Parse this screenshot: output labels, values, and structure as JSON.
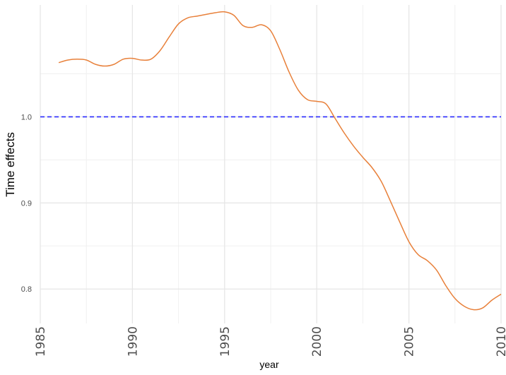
{
  "chart_data": {
    "type": "line",
    "title": "",
    "xlabel": "year",
    "ylabel": "Time effects",
    "xlim": [
      1985,
      2010
    ],
    "ylim": [
      0.76,
      1.13
    ],
    "x_ticks": [
      1985,
      1990,
      1995,
      2000,
      2005,
      2010
    ],
    "x_tick_labels": [
      "1985",
      "1990",
      "1995",
      "2000",
      "2005",
      "2010"
    ],
    "y_ticks": [
      0.8,
      0.9,
      1.0
    ],
    "y_tick_labels": [
      "0.8",
      "0.9",
      "1.0"
    ],
    "grid": true,
    "legend": "none",
    "reference_line": {
      "y": 1.0,
      "style": "dashed",
      "color": "#2b2bff"
    },
    "series": [
      {
        "color": "#e8803a",
        "x": [
          1986,
          1986.5,
          1987,
          1987.5,
          1988,
          1988.5,
          1989,
          1989.5,
          1990,
          1990.5,
          1991,
          1991.5,
          1992,
          1992.5,
          1993,
          1993.5,
          1994,
          1994.5,
          1995,
          1995.5,
          1996,
          1996.5,
          1997,
          1997.5,
          1998,
          1998.5,
          1999,
          1999.5,
          2000,
          2000.5,
          2001,
          2001.5,
          2002,
          2002.5,
          2003,
          2003.5,
          2004,
          2004.5,
          2005,
          2005.5,
          2006,
          2006.5,
          2007,
          2007.5,
          2008,
          2008.5,
          2009,
          2009.5,
          2010
        ],
        "values": [
          1.063,
          1.066,
          1.067,
          1.066,
          1.061,
          1.059,
          1.061,
          1.067,
          1.068,
          1.066,
          1.067,
          1.077,
          1.093,
          1.108,
          1.115,
          1.117,
          1.119,
          1.121,
          1.122,
          1.118,
          1.106,
          1.104,
          1.107,
          1.1,
          1.078,
          1.052,
          1.031,
          1.02,
          1.018,
          1.015,
          0.998,
          0.981,
          0.966,
          0.953,
          0.941,
          0.925,
          0.902,
          0.878,
          0.855,
          0.84,
          0.833,
          0.822,
          0.804,
          0.789,
          0.78,
          0.776,
          0.778,
          0.787,
          0.794
        ]
      }
    ]
  }
}
